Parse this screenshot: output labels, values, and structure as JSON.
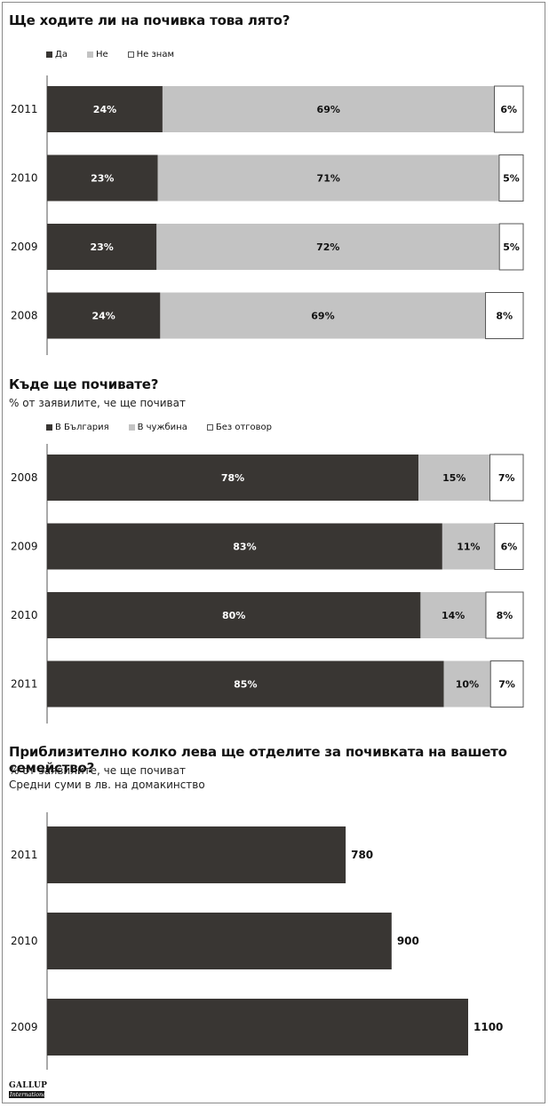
{
  "chart_data": [
    {
      "type": "bar",
      "orientation": "horizontal",
      "stacked": true,
      "title": "Ще ходите ли на почивка това лято?",
      "legend_position": "top-left",
      "categories": [
        "2011",
        "2010",
        "2009",
        "2008"
      ],
      "series": [
        {
          "name": "Да",
          "values": [
            24,
            23,
            23,
            24
          ],
          "labels": [
            "24%",
            "23%",
            "23%",
            "24%"
          ],
          "color": "#393633"
        },
        {
          "name": "Не",
          "values": [
            69,
            71,
            72,
            69
          ],
          "labels": [
            "69%",
            "71%",
            "72%",
            "69%"
          ],
          "color": "#c3c3c3"
        },
        {
          "name": "Не знам",
          "values": [
            6,
            5,
            5,
            8
          ],
          "labels": [
            "6%",
            "5%",
            "5%",
            "8%"
          ],
          "color": "#ffffff"
        }
      ]
    },
    {
      "type": "bar",
      "orientation": "horizontal",
      "stacked": true,
      "title": "Къде ще почивате?",
      "subtitle": "% от заявилите, че ще почиват",
      "legend_position": "top-left",
      "categories": [
        "2008",
        "2009",
        "2010",
        "2011"
      ],
      "series": [
        {
          "name": "В България",
          "values": [
            78,
            83,
            80,
            85
          ],
          "labels": [
            "78%",
            "83%",
            "80%",
            "85%"
          ],
          "color": "#393633"
        },
        {
          "name": "В чужбина",
          "values": [
            15,
            11,
            14,
            10
          ],
          "labels": [
            "15%",
            "11%",
            "14%",
            "10%"
          ],
          "color": "#c3c3c3"
        },
        {
          "name": "Без отговор",
          "values": [
            7,
            6,
            8,
            7
          ],
          "labels": [
            "7%",
            "6%",
            "8%",
            "7%"
          ],
          "color": "#ffffff"
        }
      ]
    },
    {
      "type": "bar",
      "orientation": "horizontal",
      "title": "Приблизително колко лева ще отделите за почивката на вашето семейство?",
      "subtitle": "% от заявилите, че ще почиват",
      "subtitle2": "Средни суми в лв. на домакинство",
      "categories": [
        "2011",
        "2010",
        "2009"
      ],
      "values": [
        780,
        900,
        1100
      ],
      "labels": [
        "780",
        "900",
        "1100"
      ],
      "xlim": [
        0,
        1100
      ],
      "color": "#393633"
    }
  ],
  "logo": {
    "top": "GALLUP",
    "bottom": "International"
  }
}
